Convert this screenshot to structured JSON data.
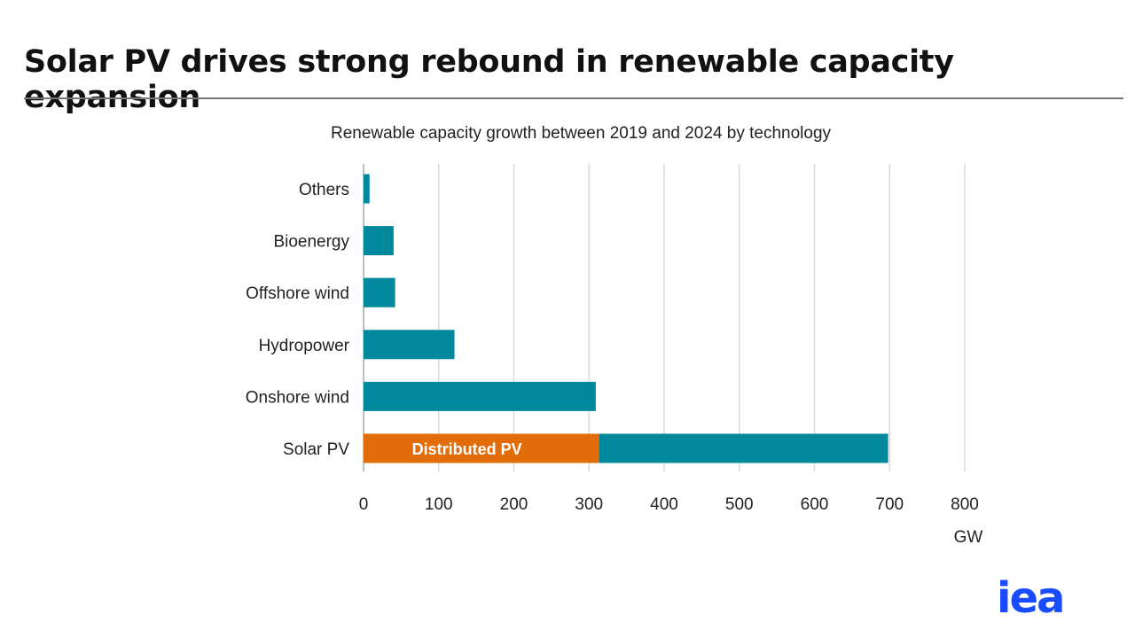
{
  "title": "Solar PV drives strong rebound in renewable capacity expansion",
  "logo_text": "iea",
  "colors": {
    "teal": "#00889c",
    "orange": "#e36c0a",
    "logo": "#1a4cff"
  },
  "chart_data": {
    "type": "bar",
    "orientation": "horizontal",
    "stacked": true,
    "title": "Renewable capacity growth between 2019 and 2024 by technology",
    "xlabel": "GW",
    "categories": [
      "Others",
      "Bioenergy",
      "Offshore wind",
      "Hydropower",
      "Onshore wind",
      "Solar PV"
    ],
    "series": [
      {
        "name": "Distributed PV",
        "color": "#e36c0a",
        "values": [
          0,
          0,
          0,
          0,
          0,
          313
        ]
      },
      {
        "color": "#00889c",
        "values": [
          8,
          40,
          42,
          121,
          309,
          385
        ]
      }
    ],
    "xlim": [
      0,
      800
    ],
    "xticks": [
      "0",
      "100",
      "200",
      "300",
      "400",
      "500",
      "600",
      "700",
      "800"
    ],
    "grid": "vertical",
    "legend": "inline label on bar"
  }
}
